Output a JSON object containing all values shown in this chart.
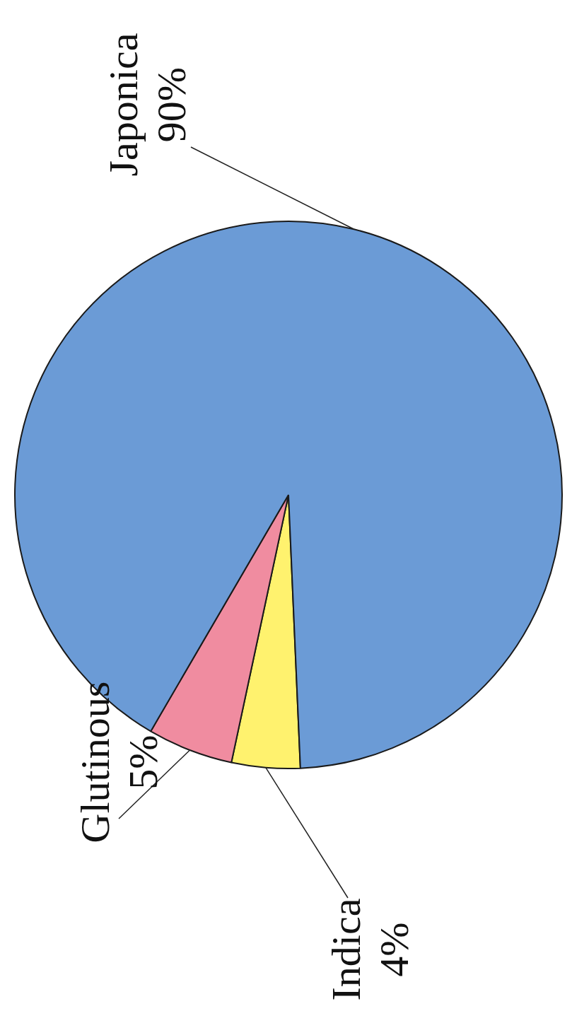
{
  "chart_data": {
    "type": "pie",
    "categories": [
      "Indica",
      "Glutinous",
      "Japonica"
    ],
    "values": [
      4,
      5,
      90
    ],
    "colors": [
      "#fff26e",
      "#f08ca0",
      "#6b9bd6"
    ],
    "value_labels": [
      "4%",
      "5%",
      "90%"
    ],
    "legend": false
  }
}
